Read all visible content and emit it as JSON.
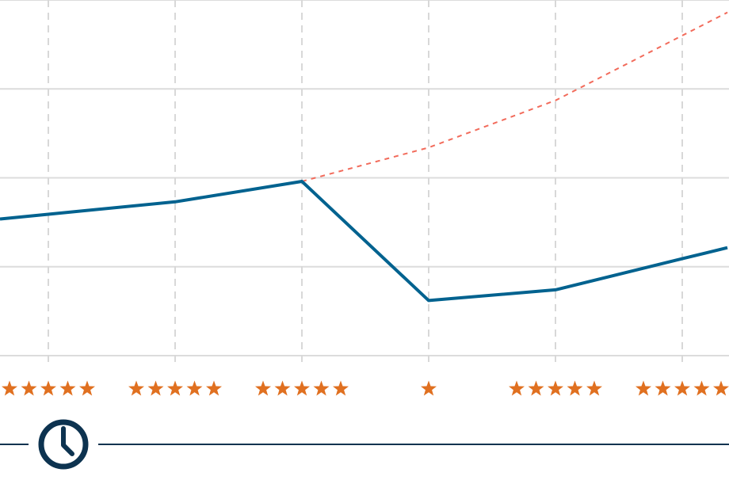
{
  "chart_data": {
    "type": "line",
    "x": [
      1,
      2,
      3,
      4,
      5,
      6
    ],
    "ylim": [
      0,
      4
    ],
    "series": [
      {
        "values": [
          1.59,
          1.73,
          1.96,
          0.62,
          0.74,
          1.09
        ],
        "color": "#00628f",
        "style": "solid"
      },
      {
        "values": [
          null,
          null,
          1.96,
          2.34,
          2.87,
          3.6
        ],
        "color": "#f26b5b",
        "style": "dashed"
      }
    ],
    "ratings": [
      5,
      5,
      5,
      1,
      5,
      5
    ],
    "rating_color": "#e07020",
    "grid": {
      "horizontal": true,
      "vertical": true,
      "vertical_style": "dashed"
    },
    "timeline": {
      "icon": "clock-icon",
      "color": "#0d3350"
    }
  }
}
